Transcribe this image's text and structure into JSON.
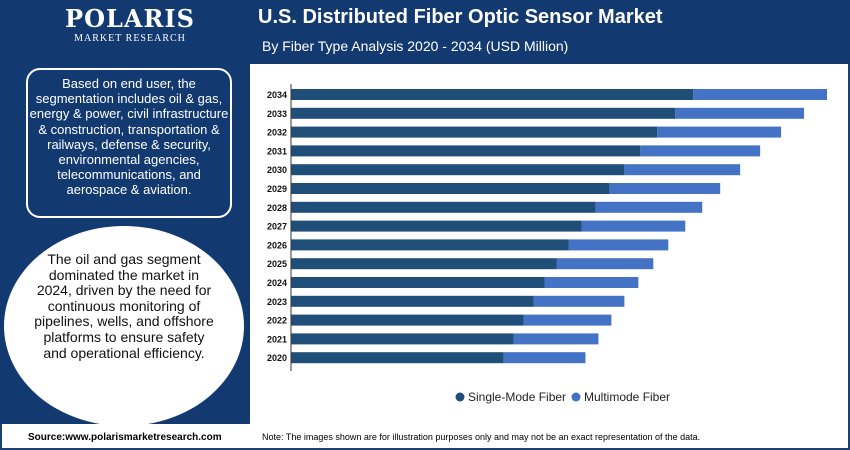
{
  "brand": {
    "name": "POLARIS",
    "tagline": "MARKET RESEARCH"
  },
  "header": {
    "title": "U.S. Distributed Fiber Optic Sensor Market",
    "subtitle": "By Fiber Type Analysis 2020 - 2034 (USD Million)"
  },
  "panel": {
    "segmentation_text": "Based on end user, the segmentation includes oil & gas, energy & power, civil infrastructure & construction, transportation & railways, defense & security, environmental agencies, telecommunications, and aerospace & aviation.",
    "insight_text": "The oil and gas segment dominated the market in 2024, driven by the need for continuous monitoring of pipelines, wells, and offshore platforms to ensure safety and operational efficiency."
  },
  "footer": {
    "source": "Source:www.polarismarketresearch.com",
    "note": "Note: The images shown are for illustration purposes only and may not be an exact representation of the data."
  },
  "colors": {
    "header": "#133a70",
    "single_mode": "#1f4e79",
    "multimode": "#4472c4"
  },
  "chart_data": {
    "type": "bar",
    "orientation": "horizontal",
    "stacked": true,
    "categories": [
      "2034",
      "2033",
      "2032",
      "2031",
      "2030",
      "2029",
      "2028",
      "2027",
      "2026",
      "2025",
      "2024",
      "2023",
      "2022",
      "2021",
      "2020"
    ],
    "series": [
      {
        "name": "Single-Mode Fiber",
        "color": "#1f4e79",
        "values": [
          403,
          385,
          367,
          350,
          334,
          319,
          305,
          291,
          278,
          266,
          254,
          243,
          233,
          223,
          213
        ]
      },
      {
        "name": "Multimode Fiber",
        "color": "#4472c4",
        "values": [
          134,
          129,
          124,
          120,
          116,
          111,
          107,
          104,
          100,
          97,
          94,
          91,
          88,
          85,
          82
        ]
      }
    ],
    "title": "U.S. Distributed Fiber Optic Sensor Market",
    "xlabel": "",
    "ylabel": "",
    "xlim": [
      0,
      540
    ],
    "legend": "bottom"
  }
}
